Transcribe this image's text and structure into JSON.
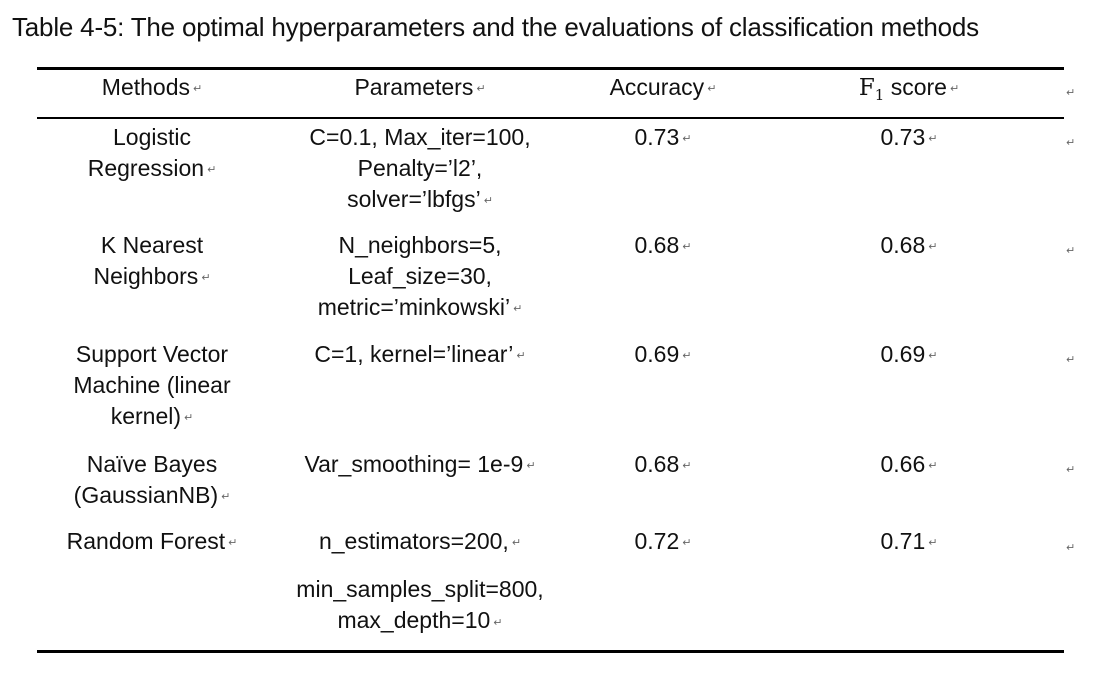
{
  "caption": "Table 4-5: The optimal hyperparameters and the evaluations of classification methods",
  "paragraph_mark": "↵",
  "headers": {
    "methods": "Methods",
    "parameters": "Parameters",
    "accuracy": "Accuracy",
    "f1_letter": "F",
    "f1_subscript": "1",
    "f1_rest": " score"
  },
  "rows": [
    {
      "method": [
        "Logistic",
        "Regression"
      ],
      "params": [
        "C=0.1, Max_iter=100,",
        "Penalty=’l2’,",
        "solver=’lbfgs’"
      ],
      "accuracy": "0.73",
      "f1": "0.73"
    },
    {
      "method": [
        "K Nearest",
        "Neighbors"
      ],
      "params": [
        "N_neighbors=5,",
        "Leaf_size=30,",
        "metric=’minkowski’"
      ],
      "accuracy": "0.68",
      "f1": "0.68"
    },
    {
      "method": [
        "Support Vector",
        "Machine (linear",
        "kernel)"
      ],
      "params": [
        "C=1, kernel=’linear’"
      ],
      "accuracy": "0.69",
      "f1": "0.69"
    },
    {
      "method": [
        "Naïve Bayes",
        "(GaussianNB)"
      ],
      "params": [
        "Var_smoothing= 1e-9"
      ],
      "accuracy": "0.68",
      "f1": "0.66"
    },
    {
      "method": [
        "Random Forest"
      ],
      "params": [
        "n_estimators=200,",
        "min_samples_split=800,",
        "max_depth=10"
      ],
      "accuracy": "0.72",
      "f1": "0.71"
    }
  ]
}
